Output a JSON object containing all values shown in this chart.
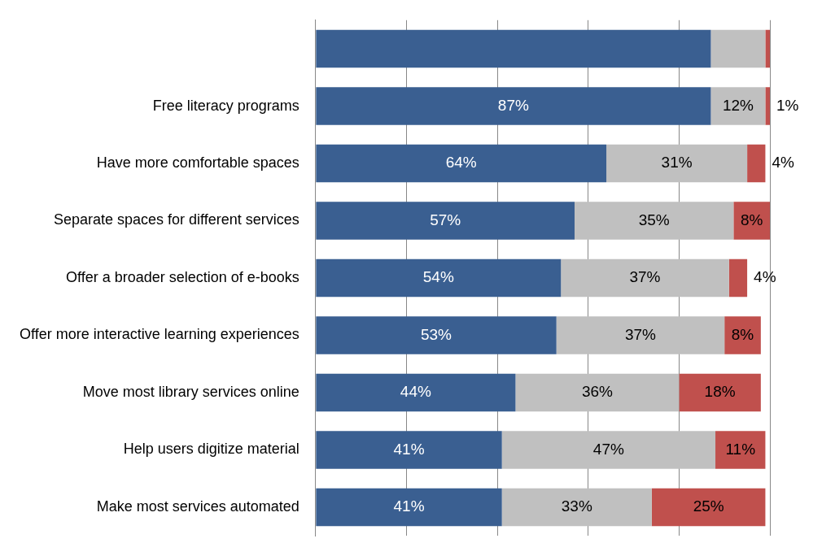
{
  "chart_data": {
    "type": "bar",
    "orientation": "horizontal",
    "stacked": true,
    "categories": [
      null,
      "Free literacy programs",
      "Have more comfortable spaces",
      "Separate spaces for different services",
      "Offer a broader selection of e-books",
      "Offer more interactive learning experiences",
      "Move most library services online",
      "Help users digitize material",
      "Make most services automated"
    ],
    "series": [
      {
        "color": "#3a5f91",
        "values": [
          87,
          87,
          64,
          57,
          54,
          53,
          44,
          41,
          41
        ],
        "value_labels": [
          null,
          "87%",
          "64%",
          "57%",
          "54%",
          "53%",
          "44%",
          "41%",
          "41%"
        ]
      },
      {
        "color": "#c0c0c0",
        "values": [
          12,
          12,
          31,
          35,
          37,
          37,
          36,
          47,
          33
        ],
        "value_labels": [
          null,
          "12%",
          "31%",
          "35%",
          "37%",
          "37%",
          "36%",
          "47%",
          "33%"
        ]
      },
      {
        "color": "#c0504d",
        "values": [
          1,
          1,
          4,
          8,
          4,
          8,
          18,
          11,
          25
        ],
        "value_labels": [
          null,
          "1%",
          "4%",
          "8%",
          "4%",
          "8%",
          "18%",
          "11%",
          "25%"
        ]
      }
    ],
    "xlim": [
      0,
      100
    ],
    "xticks": [
      {
        "value": 0,
        "label": null
      },
      {
        "value": 20,
        "label": null
      },
      {
        "value": 40,
        "label": null
      },
      {
        "value": 60,
        "label": null
      },
      {
        "value": 80,
        "label": null
      },
      {
        "value": 100,
        "label": null
      }
    ],
    "tick_labels": "y",
    "grid": "x",
    "legend": false
  }
}
